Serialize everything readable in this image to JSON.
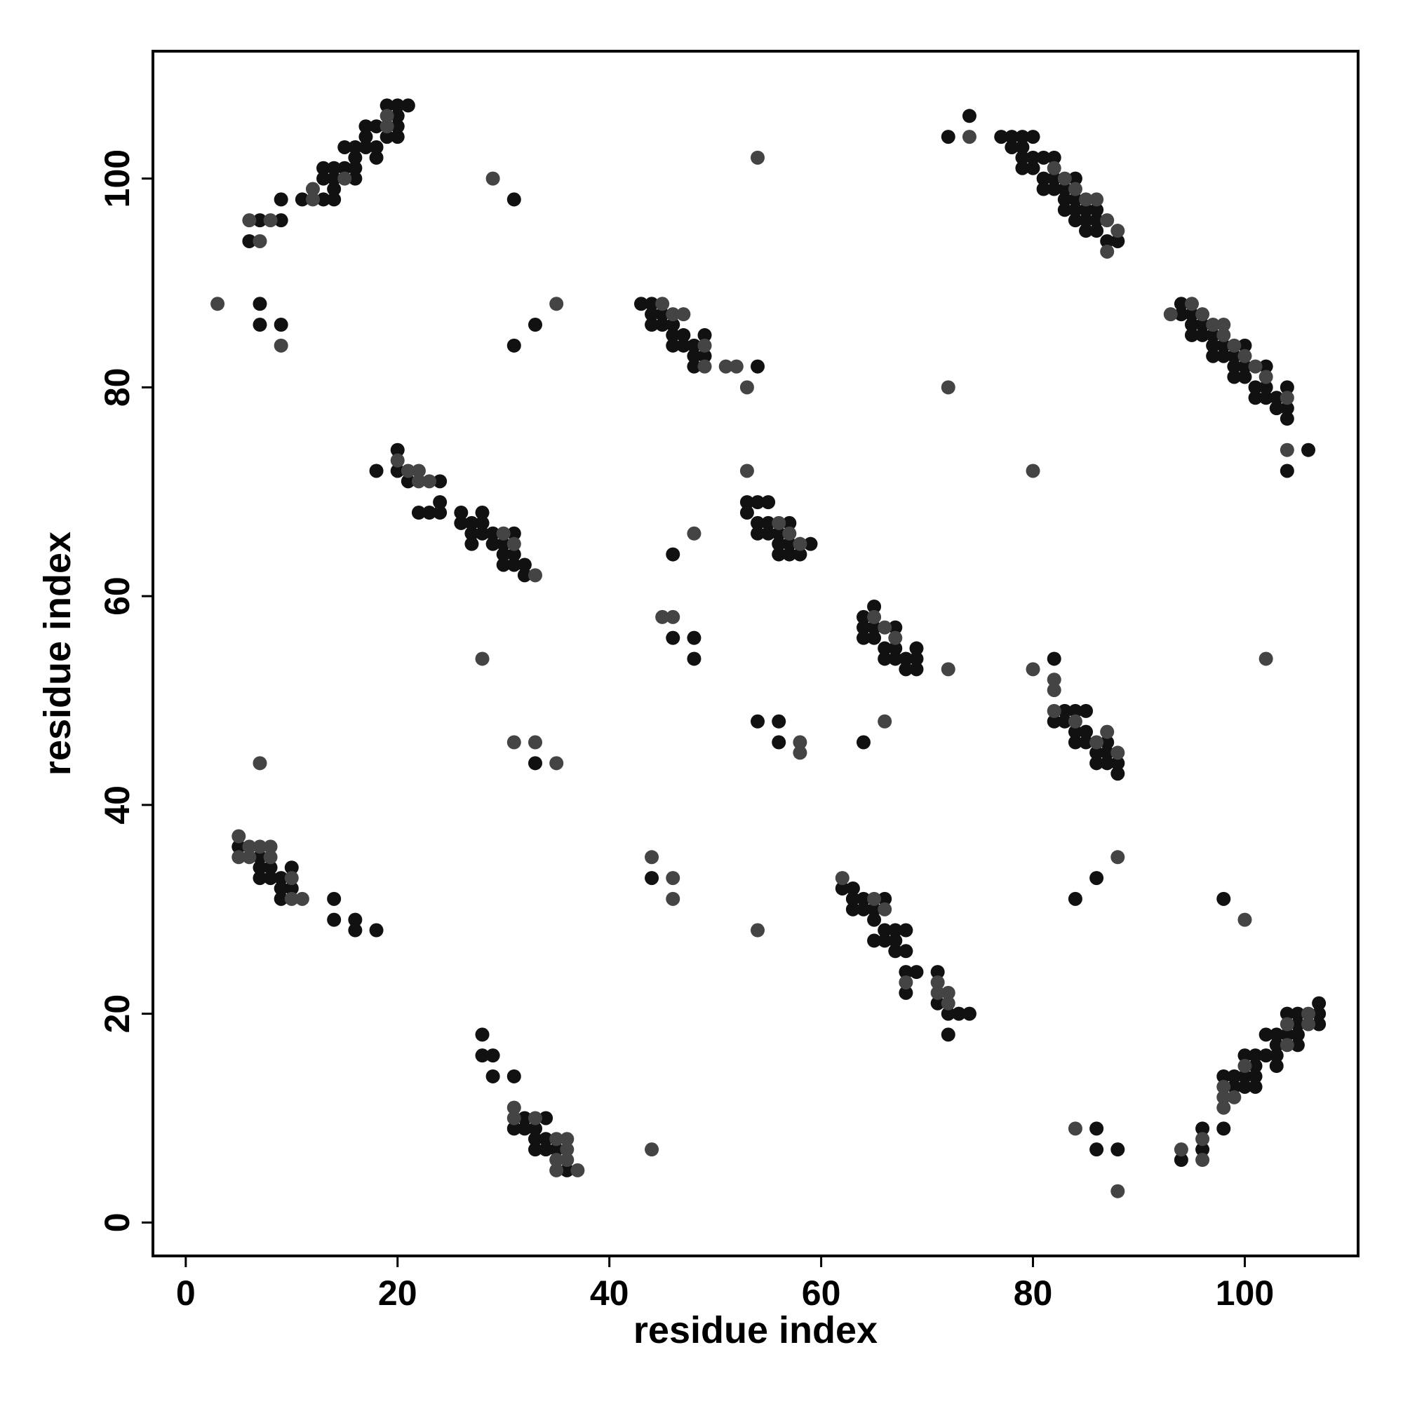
{
  "chart_data": {
    "type": "scatter",
    "x_label": "residue index",
    "y_label": "residue index",
    "xlim": [
      -3.1,
      110.7
    ],
    "ylim": [
      -3.2,
      112.2
    ],
    "xticks": [
      0,
      20,
      40,
      60,
      80,
      100
    ],
    "yticks": [
      0,
      20,
      40,
      60,
      80,
      100
    ],
    "grid": false,
    "series": [
      {
        "color": "#111111",
        "x": [
          6,
          7,
          9,
          9,
          11,
          13,
          13,
          13,
          14,
          14,
          14,
          14,
          15,
          15,
          16,
          16,
          16,
          16,
          17,
          17,
          17,
          18,
          18,
          18,
          19,
          19,
          20,
          20,
          20,
          20,
          21,
          7,
          7,
          9,
          31,
          33,
          31,
          43,
          44,
          44,
          44,
          45,
          45,
          46,
          46,
          46,
          47,
          47,
          48,
          48,
          48,
          49,
          49,
          54,
          72,
          74,
          77,
          78,
          78,
          79,
          79,
          79,
          79,
          80,
          80,
          80,
          81,
          81,
          81,
          82,
          82,
          82,
          83,
          83,
          83,
          84,
          84,
          84,
          84,
          85,
          85,
          85,
          86,
          86,
          86,
          87,
          88,
          94,
          94,
          95,
          95,
          95,
          96,
          96,
          97,
          97,
          97,
          98,
          98,
          99,
          99,
          99,
          100,
          100,
          100,
          101,
          101,
          102,
          102,
          102,
          103,
          103,
          104,
          104,
          104,
          104,
          106,
          18,
          20,
          20,
          21,
          22,
          23,
          24,
          24,
          24,
          26,
          26,
          27,
          27,
          27,
          28,
          28,
          28,
          29,
          29,
          30,
          30,
          30,
          31,
          31,
          31,
          32,
          32,
          53,
          53,
          54,
          54,
          54,
          55,
          55,
          55,
          56,
          56,
          56,
          57,
          57,
          57,
          58,
          59,
          46,
          46,
          48,
          48,
          64,
          64,
          64,
          65,
          65,
          65,
          66,
          66,
          67,
          67,
          67,
          68,
          68,
          69,
          69,
          69,
          82,
          82,
          83,
          83,
          84,
          84,
          84,
          85,
          85,
          85,
          86,
          86,
          87,
          87,
          87,
          88,
          88,
          33,
          54,
          56,
          56,
          64,
          5,
          7,
          7,
          7,
          8,
          8,
          9,
          9,
          9,
          10,
          10,
          14,
          14,
          16,
          16,
          18,
          44,
          62,
          63,
          63,
          63,
          64,
          64,
          65,
          65,
          65,
          66,
          66,
          66,
          67,
          67,
          67,
          68,
          68,
          68,
          68,
          69,
          71,
          71,
          72,
          72,
          73,
          74,
          84,
          86,
          98,
          28,
          28,
          29,
          29,
          31,
          31,
          32,
          32,
          33,
          33,
          33,
          34,
          34,
          34,
          35,
          36,
          86,
          86,
          88,
          94,
          96,
          96,
          98,
          98,
          99,
          99,
          100,
          100,
          100,
          101,
          101,
          101,
          101,
          102,
          102,
          103,
          103,
          103,
          103,
          104,
          104,
          105,
          105,
          105,
          105,
          107,
          107,
          107
        ],
        "values": [
          94,
          96,
          96,
          98,
          98,
          98,
          100,
          101,
          98,
          99,
          100,
          101,
          101,
          103,
          100,
          101,
          102,
          103,
          103,
          104,
          105,
          102,
          103,
          105,
          104,
          107,
          104,
          105,
          106,
          107,
          107,
          88,
          86,
          86,
          98,
          86,
          84,
          88,
          88,
          87,
          86,
          87,
          86,
          86,
          85,
          84,
          85,
          84,
          84,
          83,
          82,
          85,
          83,
          82,
          104,
          106,
          104,
          104,
          103,
          104,
          103,
          102,
          101,
          104,
          102,
          101,
          102,
          100,
          99,
          102,
          100,
          99,
          99,
          98,
          97,
          100,
          98,
          97,
          96,
          97,
          96,
          95,
          97,
          96,
          95,
          94,
          94,
          88,
          87,
          87,
          86,
          85,
          86,
          85,
          85,
          84,
          83,
          84,
          83,
          83,
          82,
          81,
          84,
          82,
          81,
          80,
          79,
          82,
          80,
          79,
          79,
          78,
          80,
          78,
          77,
          72,
          74,
          72,
          74,
          72,
          71,
          68,
          68,
          71,
          69,
          68,
          68,
          67,
          67,
          66,
          65,
          68,
          67,
          66,
          66,
          65,
          65,
          64,
          63,
          66,
          64,
          63,
          63,
          62,
          69,
          68,
          69,
          67,
          66,
          69,
          67,
          66,
          66,
          65,
          64,
          67,
          65,
          64,
          64,
          65,
          64,
          56,
          56,
          54,
          58,
          57,
          56,
          59,
          57,
          56,
          55,
          54,
          57,
          55,
          54,
          54,
          53,
          55,
          54,
          53,
          54,
          48,
          49,
          48,
          49,
          47,
          46,
          49,
          47,
          46,
          45,
          44,
          46,
          45,
          44,
          44,
          43,
          44,
          48,
          48,
          46,
          46,
          36,
          35,
          34,
          33,
          34,
          33,
          33,
          32,
          31,
          34,
          32,
          31,
          29,
          29,
          28,
          28,
          33,
          32,
          32,
          31,
          30,
          31,
          30,
          30,
          29,
          27,
          31,
          28,
          27,
          28,
          27,
          26,
          28,
          26,
          24,
          22,
          24,
          24,
          21,
          20,
          18,
          20,
          20,
          31,
          33,
          31,
          18,
          16,
          16,
          14,
          14,
          9,
          10,
          9,
          9,
          8,
          7,
          10,
          8,
          7,
          7,
          5,
          9,
          7,
          7,
          6,
          9,
          7,
          14,
          9,
          14,
          13,
          16,
          14,
          13,
          16,
          15,
          14,
          13,
          18,
          16,
          18,
          17,
          16,
          15,
          20,
          18,
          20,
          19,
          18,
          17,
          21,
          20,
          19
        ]
      },
      {
        "color": "#444444",
        "x": [
          6,
          7,
          8,
          12,
          12,
          15,
          19,
          19,
          3,
          9,
          29,
          35,
          45,
          46,
          47,
          49,
          49,
          51,
          52,
          53,
          54,
          74,
          82,
          83,
          84,
          85,
          86,
          87,
          87,
          88,
          93,
          95,
          96,
          97,
          98,
          98,
          99,
          100,
          101,
          102,
          104,
          104,
          72,
          80,
          20,
          21,
          22,
          22,
          23,
          30,
          31,
          33,
          53,
          56,
          57,
          58,
          48,
          45,
          46,
          28,
          65,
          66,
          67,
          72,
          80,
          102,
          82,
          82,
          82,
          84,
          86,
          87,
          88,
          31,
          33,
          35,
          7,
          58,
          58,
          66,
          5,
          5,
          6,
          6,
          7,
          8,
          8,
          10,
          10,
          11,
          44,
          46,
          46,
          54,
          62,
          65,
          66,
          68,
          71,
          71,
          72,
          72,
          88,
          100,
          31,
          31,
          33,
          35,
          35,
          35,
          36,
          36,
          36,
          37,
          44,
          84,
          88,
          94,
          96,
          96,
          98,
          98,
          98,
          99,
          100,
          104,
          104,
          106,
          106
        ],
        "values": [
          96,
          94,
          96,
          98,
          99,
          100,
          105,
          106,
          88,
          84,
          100,
          88,
          88,
          87,
          87,
          84,
          82,
          82,
          82,
          80,
          102,
          104,
          101,
          100,
          99,
          98,
          98,
          96,
          93,
          95,
          87,
          88,
          87,
          86,
          86,
          85,
          84,
          83,
          82,
          81,
          79,
          74,
          80,
          72,
          73,
          72,
          72,
          71,
          71,
          66,
          65,
          62,
          72,
          67,
          66,
          65,
          66,
          58,
          58,
          54,
          58,
          57,
          56,
          53,
          53,
          54,
          52,
          51,
          49,
          48,
          46,
          47,
          45,
          46,
          46,
          44,
          44,
          46,
          45,
          48,
          37,
          35,
          36,
          35,
          36,
          36,
          35,
          33,
          31,
          31,
          35,
          33,
          31,
          28,
          33,
          31,
          30,
          23,
          23,
          22,
          22,
          21,
          35,
          29,
          11,
          10,
          10,
          8,
          6,
          5,
          8,
          7,
          6,
          5,
          7,
          9,
          3,
          7,
          8,
          6,
          13,
          12,
          11,
          12,
          15,
          19,
          17,
          20,
          19
        ]
      }
    ]
  }
}
